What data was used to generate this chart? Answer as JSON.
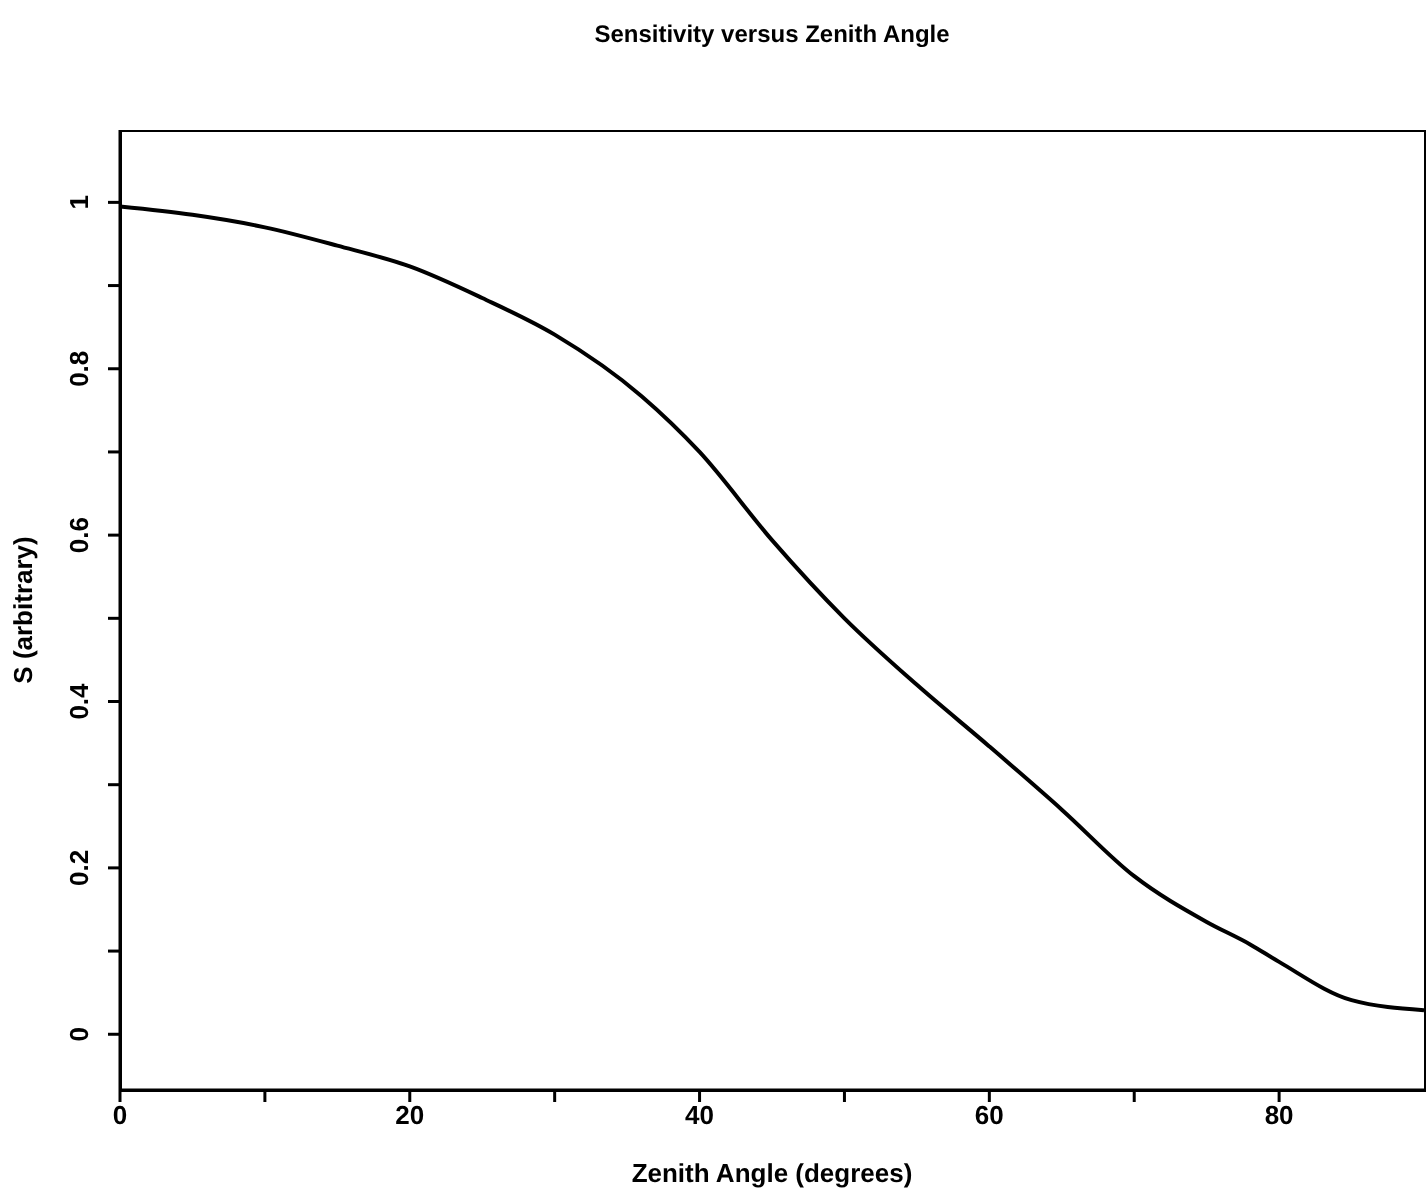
{
  "chart_data": {
    "type": "line",
    "title": "Sensitivity versus Zenith Angle",
    "xlabel": "Zenith Angle (degrees)",
    "ylabel": "S (arbitrary)",
    "x": [
      0,
      5,
      10,
      15,
      20,
      25,
      30,
      36,
      40,
      45,
      50,
      55,
      60,
      65,
      70,
      75,
      78,
      80,
      85,
      90
    ],
    "series": [
      {
        "color": "#000000",
        "values": [
          0.995,
          0.985,
          0.97,
          0.948,
          0.923,
          0.885,
          0.841,
          0.767,
          0.7,
          0.594,
          0.5,
          0.42,
          0.346,
          0.27,
          0.19,
          0.135,
          0.108,
          0.087,
          0.041,
          0.029
        ]
      }
    ],
    "xlim": [
      0,
      90
    ],
    "ylim": [
      -0.067,
      1.087
    ],
    "xticks": [
      0,
      {
        "value": 10,
        "label": null
      },
      20,
      {
        "value": 30,
        "label": null
      },
      40,
      {
        "value": 50,
        "label": null
      },
      60,
      {
        "value": 70,
        "label": null
      },
      80
    ],
    "yticks": [
      0,
      {
        "value": 0.1,
        "label": null
      },
      0.2,
      {
        "value": 0.3,
        "label": null
      },
      0.4,
      {
        "value": 0.5,
        "label": null
      },
      0.6,
      {
        "value": 0.7,
        "label": null
      },
      0.8,
      {
        "value": 0.9,
        "label": null
      },
      1
    ],
    "grid": false,
    "legend": false,
    "marker": "none",
    "line_style": "solid"
  }
}
